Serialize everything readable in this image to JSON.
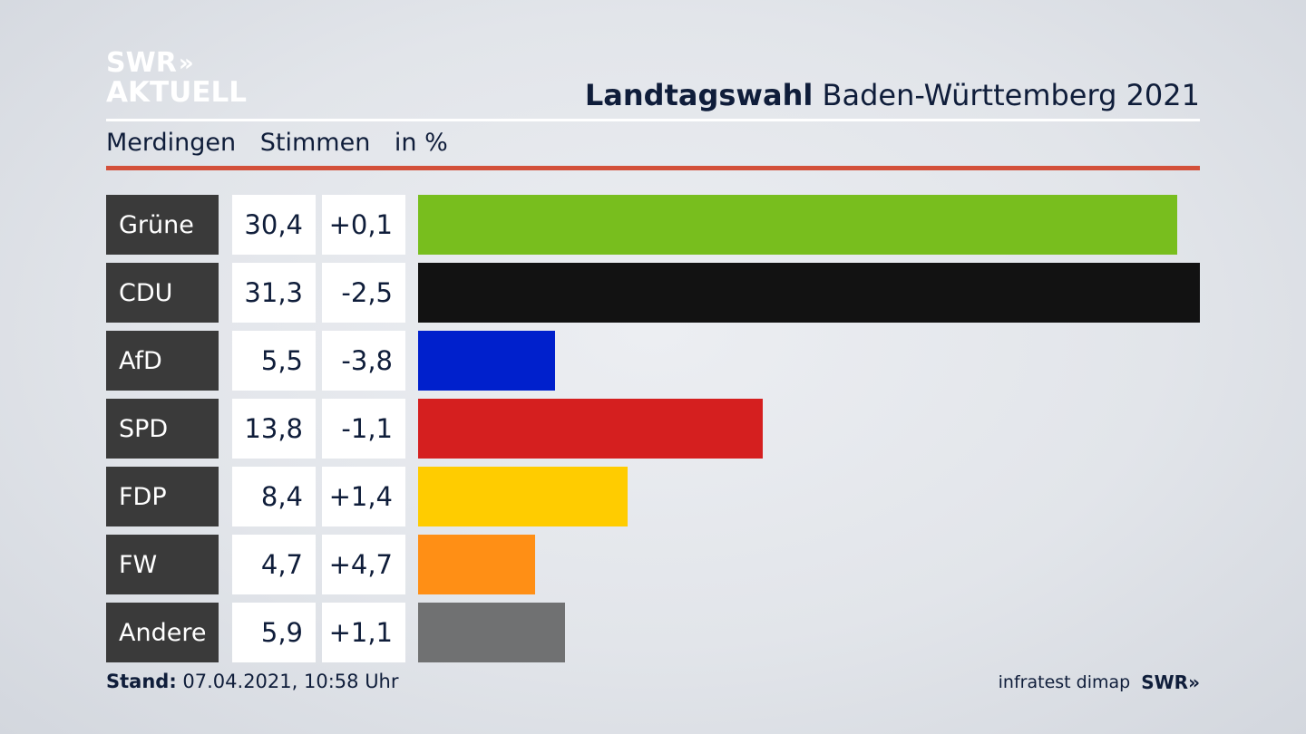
{
  "brand": {
    "line1": "SWR",
    "line1_chevrons": "»",
    "line2": "AKTUELL"
  },
  "header": {
    "title_bold": "Landtagswahl",
    "title_rest": "Baden-Württemberg 2021",
    "subtitle_place": "Merdingen",
    "subtitle_measure": "Stimmen",
    "subtitle_unit": "in %"
  },
  "colors": {
    "accent_rule": "#d3503a"
  },
  "chart_data": {
    "type": "bar",
    "orientation": "horizontal",
    "categories": [
      "Grüne",
      "CDU",
      "AfD",
      "SPD",
      "FDP",
      "FW",
      "Andere"
    ],
    "values": [
      30.4,
      31.3,
      5.5,
      13.8,
      8.4,
      4.7,
      5.9
    ],
    "value_labels": [
      "30,4",
      "31,3",
      "5,5",
      "13,8",
      "8,4",
      "4,7",
      "5,9"
    ],
    "diff_labels": [
      "+0,1",
      "-2,5",
      "-3,8",
      "-1,1",
      "+1,4",
      "+4,7",
      "+1,1"
    ],
    "colors": [
      "#78be1e",
      "#121212",
      "#0020cc",
      "#d51f1f",
      "#ffcc00",
      "#ff8f15",
      "#707172"
    ],
    "xlim": [
      0,
      31.3
    ],
    "grid": false,
    "legend": "none"
  },
  "footer": {
    "stand_label": "Stand:",
    "stand_value": "07.04.2021, 10:58 Uhr",
    "source": "infratest dimap",
    "source_brand": "SWR»"
  }
}
